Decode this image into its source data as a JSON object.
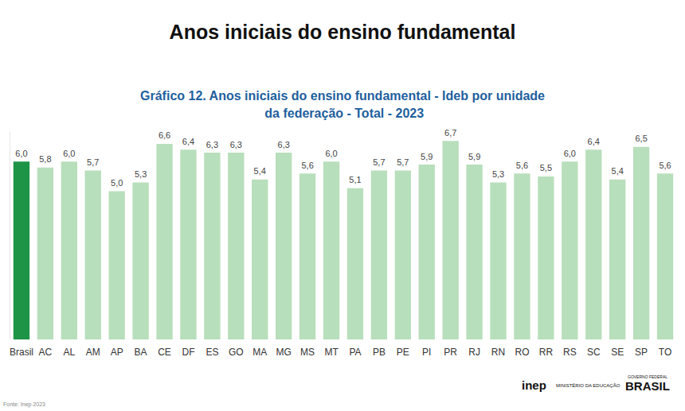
{
  "chart_data": {
    "type": "bar",
    "title": "Anos iniciais do ensino fundamental",
    "subtitle": "Gráfico 12. Anos iniciais do ensino fundamental - Ideb por unidade da federação - Total - 2023",
    "categories": [
      "Brasil",
      "AC",
      "AL",
      "AM",
      "AP",
      "BA",
      "CE",
      "DF",
      "ES",
      "GO",
      "MA",
      "MG",
      "MS",
      "MT",
      "PA",
      "PB",
      "PE",
      "PI",
      "PR",
      "RJ",
      "RN",
      "RO",
      "RR",
      "RS",
      "SC",
      "SE",
      "SP",
      "TO"
    ],
    "values": [
      6.0,
      5.8,
      6.0,
      5.7,
      5.0,
      5.3,
      6.6,
      6.4,
      6.3,
      6.3,
      5.4,
      6.3,
      5.6,
      6.0,
      5.1,
      5.7,
      5.7,
      5.9,
      6.7,
      5.9,
      5.3,
      5.6,
      5.5,
      6.0,
      6.4,
      5.4,
      6.5,
      5.6
    ],
    "value_labels": [
      "6,0",
      "5,8",
      "6,0",
      "5,7",
      "5,0",
      "5,3",
      "6,6",
      "6,4",
      "6,3",
      "6,3",
      "5,4",
      "6,3",
      "5,6",
      "6,0",
      "5,1",
      "5,7",
      "5,7",
      "5,9",
      "6,7",
      "5,9",
      "5,3",
      "5,6",
      "5,5",
      "6,0",
      "6,4",
      "5,4",
      "6,5",
      "5,6"
    ],
    "colors": [
      "#1e9447",
      "#b8dfbb",
      "#b8dfbb",
      "#b8dfbb",
      "#b8dfbb",
      "#b8dfbb",
      "#b8dfbb",
      "#b8dfbb",
      "#b8dfbb",
      "#b8dfbb",
      "#b8dfbb",
      "#b8dfbb",
      "#b8dfbb",
      "#b8dfbb",
      "#b8dfbb",
      "#b8dfbb",
      "#b8dfbb",
      "#b8dfbb",
      "#b8dfbb",
      "#b8dfbb",
      "#b8dfbb",
      "#b8dfbb",
      "#b8dfbb",
      "#b8dfbb",
      "#b8dfbb",
      "#b8dfbb",
      "#b8dfbb",
      "#b8dfbb"
    ],
    "ylim": [
      0,
      7
    ],
    "yticks": [
      0,
      7
    ],
    "grid": false,
    "data_labels": true,
    "tick_labels": "x",
    "source": "Fonte: Inep 2023",
    "logos": [
      "inep",
      "MINISTÉRIO DA EDUCAÇÃO",
      "GOVERNO FEDERAL",
      "BRASIL"
    ]
  }
}
